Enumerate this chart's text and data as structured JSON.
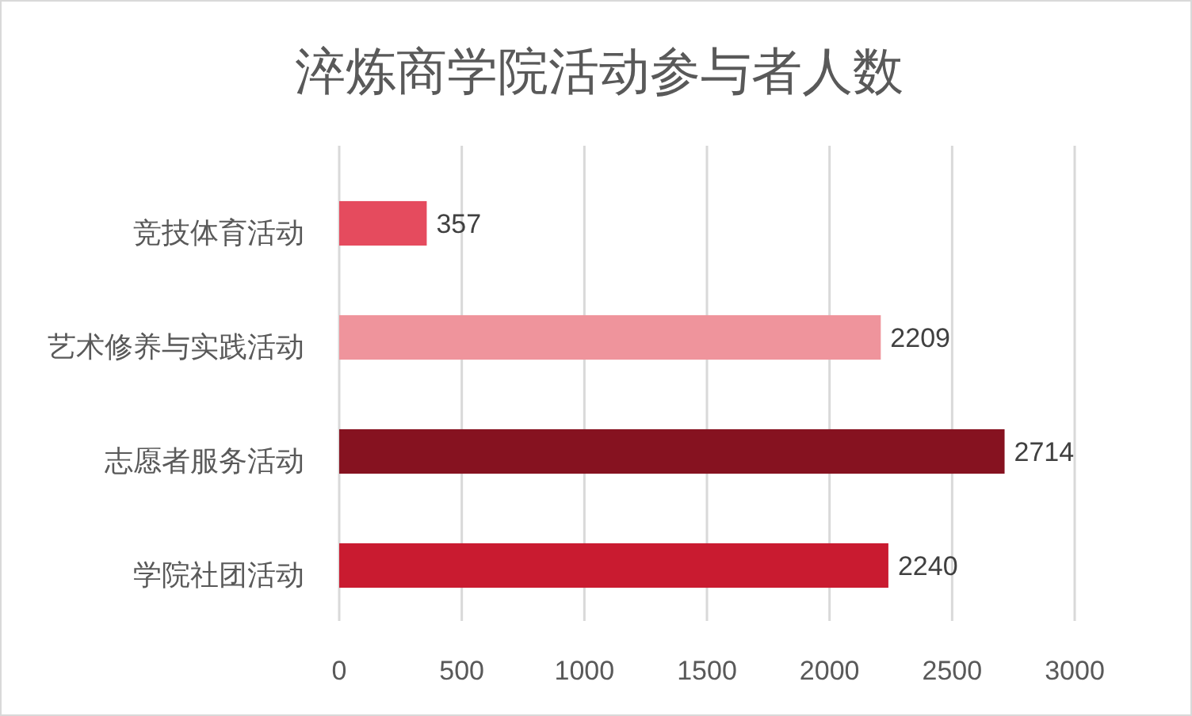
{
  "chart_data": {
    "type": "bar",
    "orientation": "horizontal",
    "title": "淬炼商学院活动参与者人数",
    "categories": [
      "竞技体育活动",
      "艺术修养与实践活动",
      "志愿者服务活动",
      "学院社团活动"
    ],
    "values": [
      357,
      2209,
      2714,
      2240
    ],
    "colors": [
      "#e54b5e",
      "#ef949c",
      "#861220",
      "#c91b30"
    ],
    "xlim": [
      0,
      3000
    ],
    "xticks": [
      0,
      500,
      1000,
      1500,
      2000,
      2500,
      3000
    ],
    "grid": "x",
    "data_labels": true
  }
}
